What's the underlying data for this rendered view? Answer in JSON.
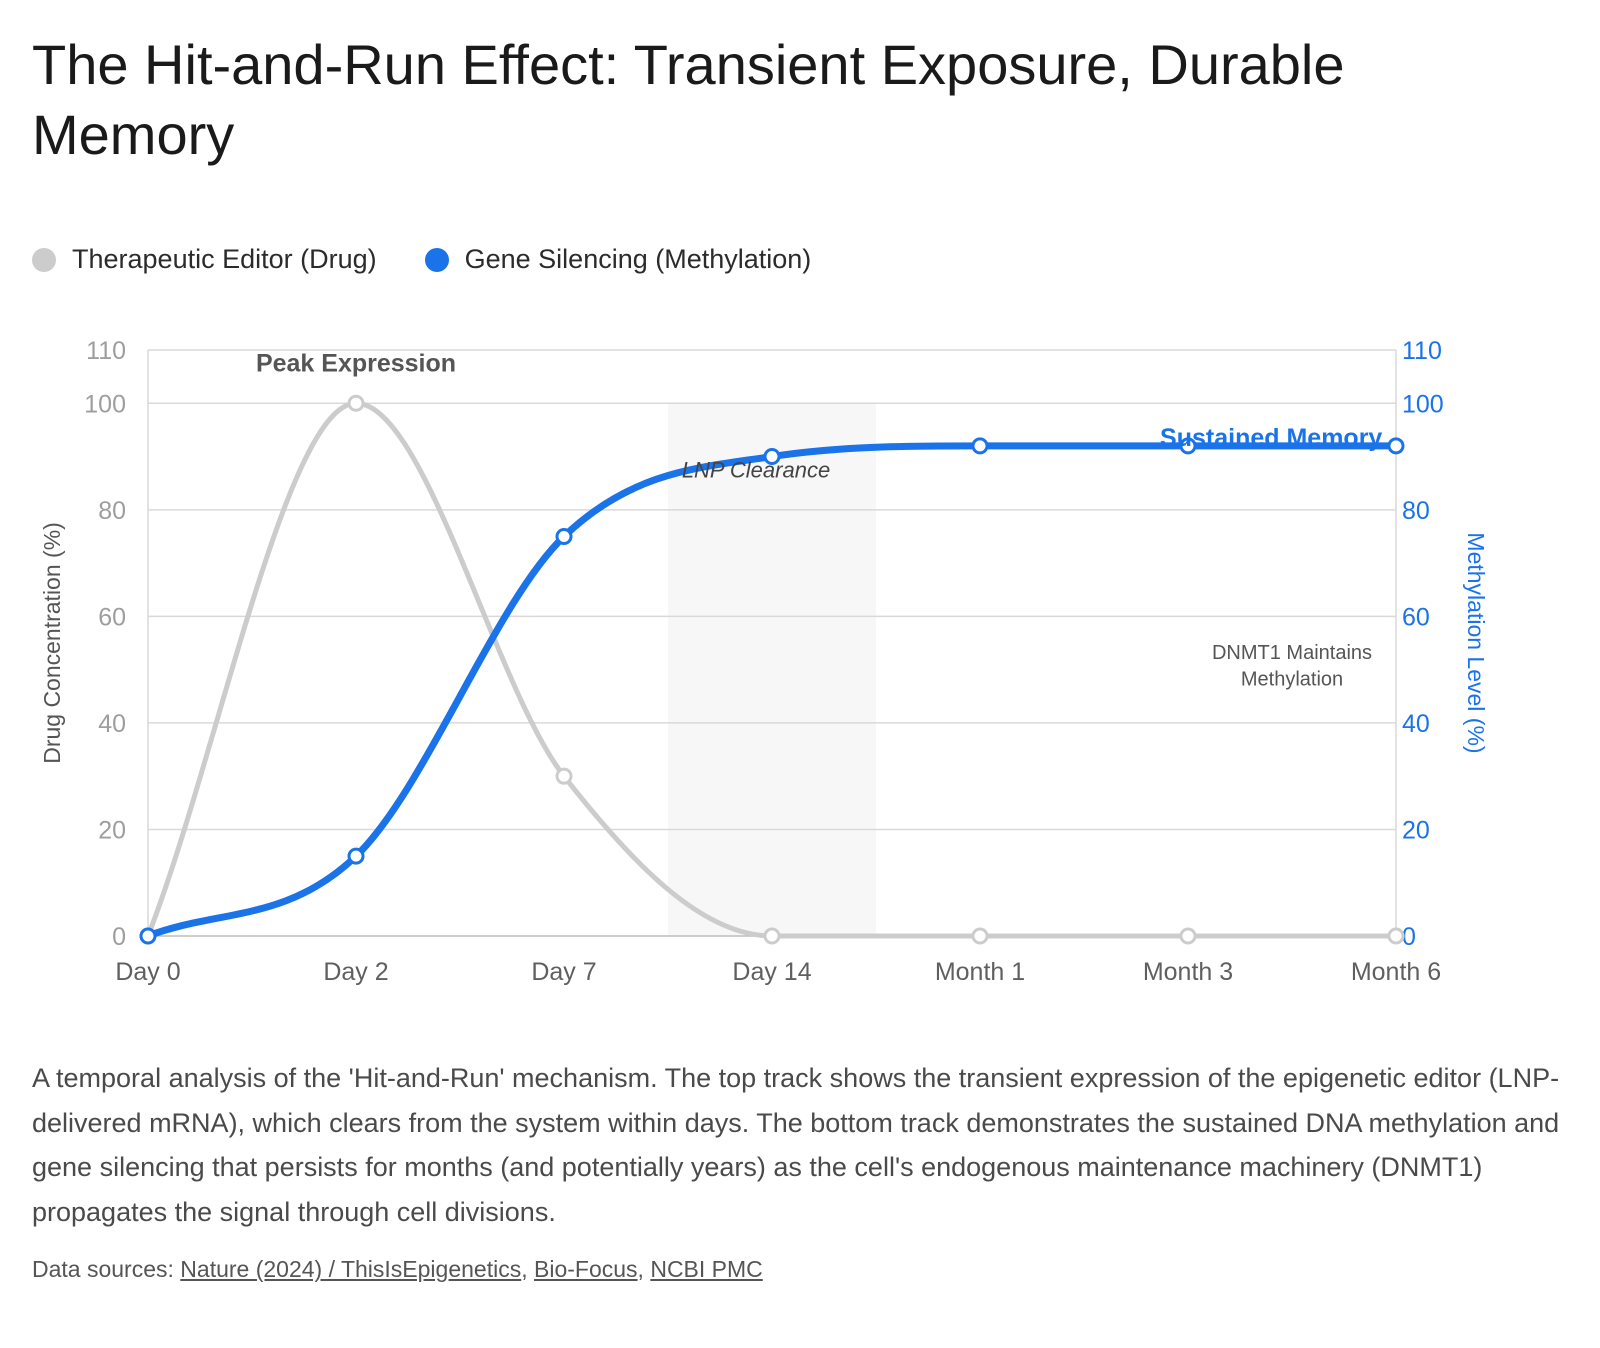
{
  "title": "The Hit-and-Run Effect: Transient Exposure, Durable Memory",
  "legend": [
    {
      "label": "Therapeutic Editor (Drug)",
      "color": "#cccccc"
    },
    {
      "label": "Gene Silencing (Methylation)",
      "color": "#1a73e8"
    }
  ],
  "chart_data": {
    "type": "line",
    "categories": [
      "Day 0",
      "Day 2",
      "Day 7",
      "Day 14",
      "Month 1",
      "Month 3",
      "Month 6"
    ],
    "series": [
      {
        "name": "Therapeutic Editor (Drug)",
        "axis": "left",
        "color": "#cccccc",
        "values": [
          0,
          100,
          30,
          0,
          0,
          0,
          0
        ]
      },
      {
        "name": "Gene Silencing (Methylation)",
        "axis": "right",
        "color": "#1a73e8",
        "values": [
          0,
          15,
          75,
          90,
          92,
          92,
          92
        ]
      }
    ],
    "y_left": {
      "label": "Drug Concentration (%)",
      "min": 0,
      "max": 110,
      "ticks": [
        0,
        20,
        40,
        60,
        80,
        100,
        110
      ]
    },
    "y_right": {
      "label": "Methylation Level (%)",
      "min": 0,
      "max": 110,
      "ticks": [
        0,
        20,
        40,
        60,
        80,
        100,
        110
      ]
    },
    "shaded_region": {
      "label": "LNP Clearance",
      "from": 2.5,
      "to": 3.5
    },
    "annotations": [
      {
        "text": "Peak Expression",
        "x": 1,
        "y": 106,
        "style": "bold-gray"
      },
      {
        "text": "Sustained Memory",
        "x": 5.4,
        "y": 92,
        "style": "bold-blue"
      },
      {
        "text": "DNMT1 Maintains",
        "x": 5.5,
        "y": 52,
        "style": "small-gray"
      },
      {
        "text": "Methylation",
        "x": 5.5,
        "y": 47,
        "style": "small-gray"
      }
    ],
    "grid": true
  },
  "description": "A temporal analysis of the 'Hit-and-Run' mechanism. The top track shows the transient expression of the epigenetic editor (LNP-delivered mRNA), which clears from the system within days. The bottom track demonstrates the sustained DNA methylation and gene silencing that persists for months (and potentially years) as the cell's endogenous maintenance machinery (DNMT1) propagates the signal through cell divisions.",
  "sources": {
    "prefix": "Data sources: ",
    "links": [
      "Nature (2024) / ThisIsEpigenetics",
      "Bio-Focus",
      "NCBI PMC"
    ],
    "separator": ", "
  }
}
